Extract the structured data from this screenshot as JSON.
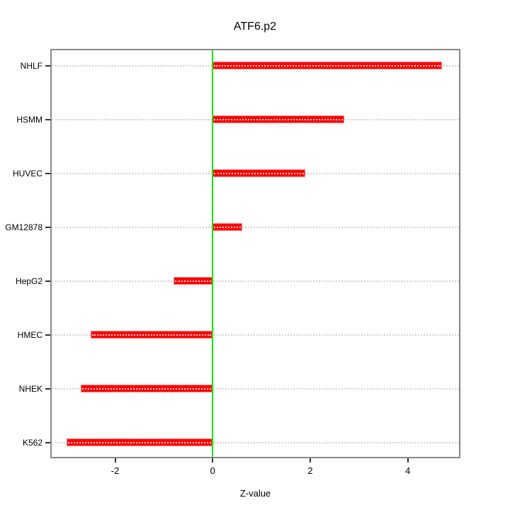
{
  "chart_data": {
    "type": "bar",
    "orientation": "horizontal",
    "title": "ATF6.p2",
    "xlabel": "Z-value",
    "ylabel": "",
    "categories": [
      "NHLF",
      "HSMM",
      "HUVEC",
      "GM12878",
      "HepG2",
      "HMEC",
      "NHEK",
      "K562"
    ],
    "values": [
      4.7,
      2.7,
      1.9,
      0.6,
      -0.8,
      -2.5,
      -2.7,
      -3.0
    ],
    "xticks": [
      -2,
      0,
      2,
      4
    ],
    "xlim": [
      -3.3,
      5.05
    ],
    "zero_line_value": 0,
    "grid": "dotted horizontal reference line per category",
    "legend": "none",
    "colors": {
      "bar_fill": "#ff0000",
      "bar_edge": "#ff8080",
      "zero_line": "#00ee00",
      "grid_dots": "#d2d2d2",
      "plot_border": "#878787",
      "axis_ticks": "#303030",
      "text": "#000000",
      "background": "#ffffff"
    }
  }
}
